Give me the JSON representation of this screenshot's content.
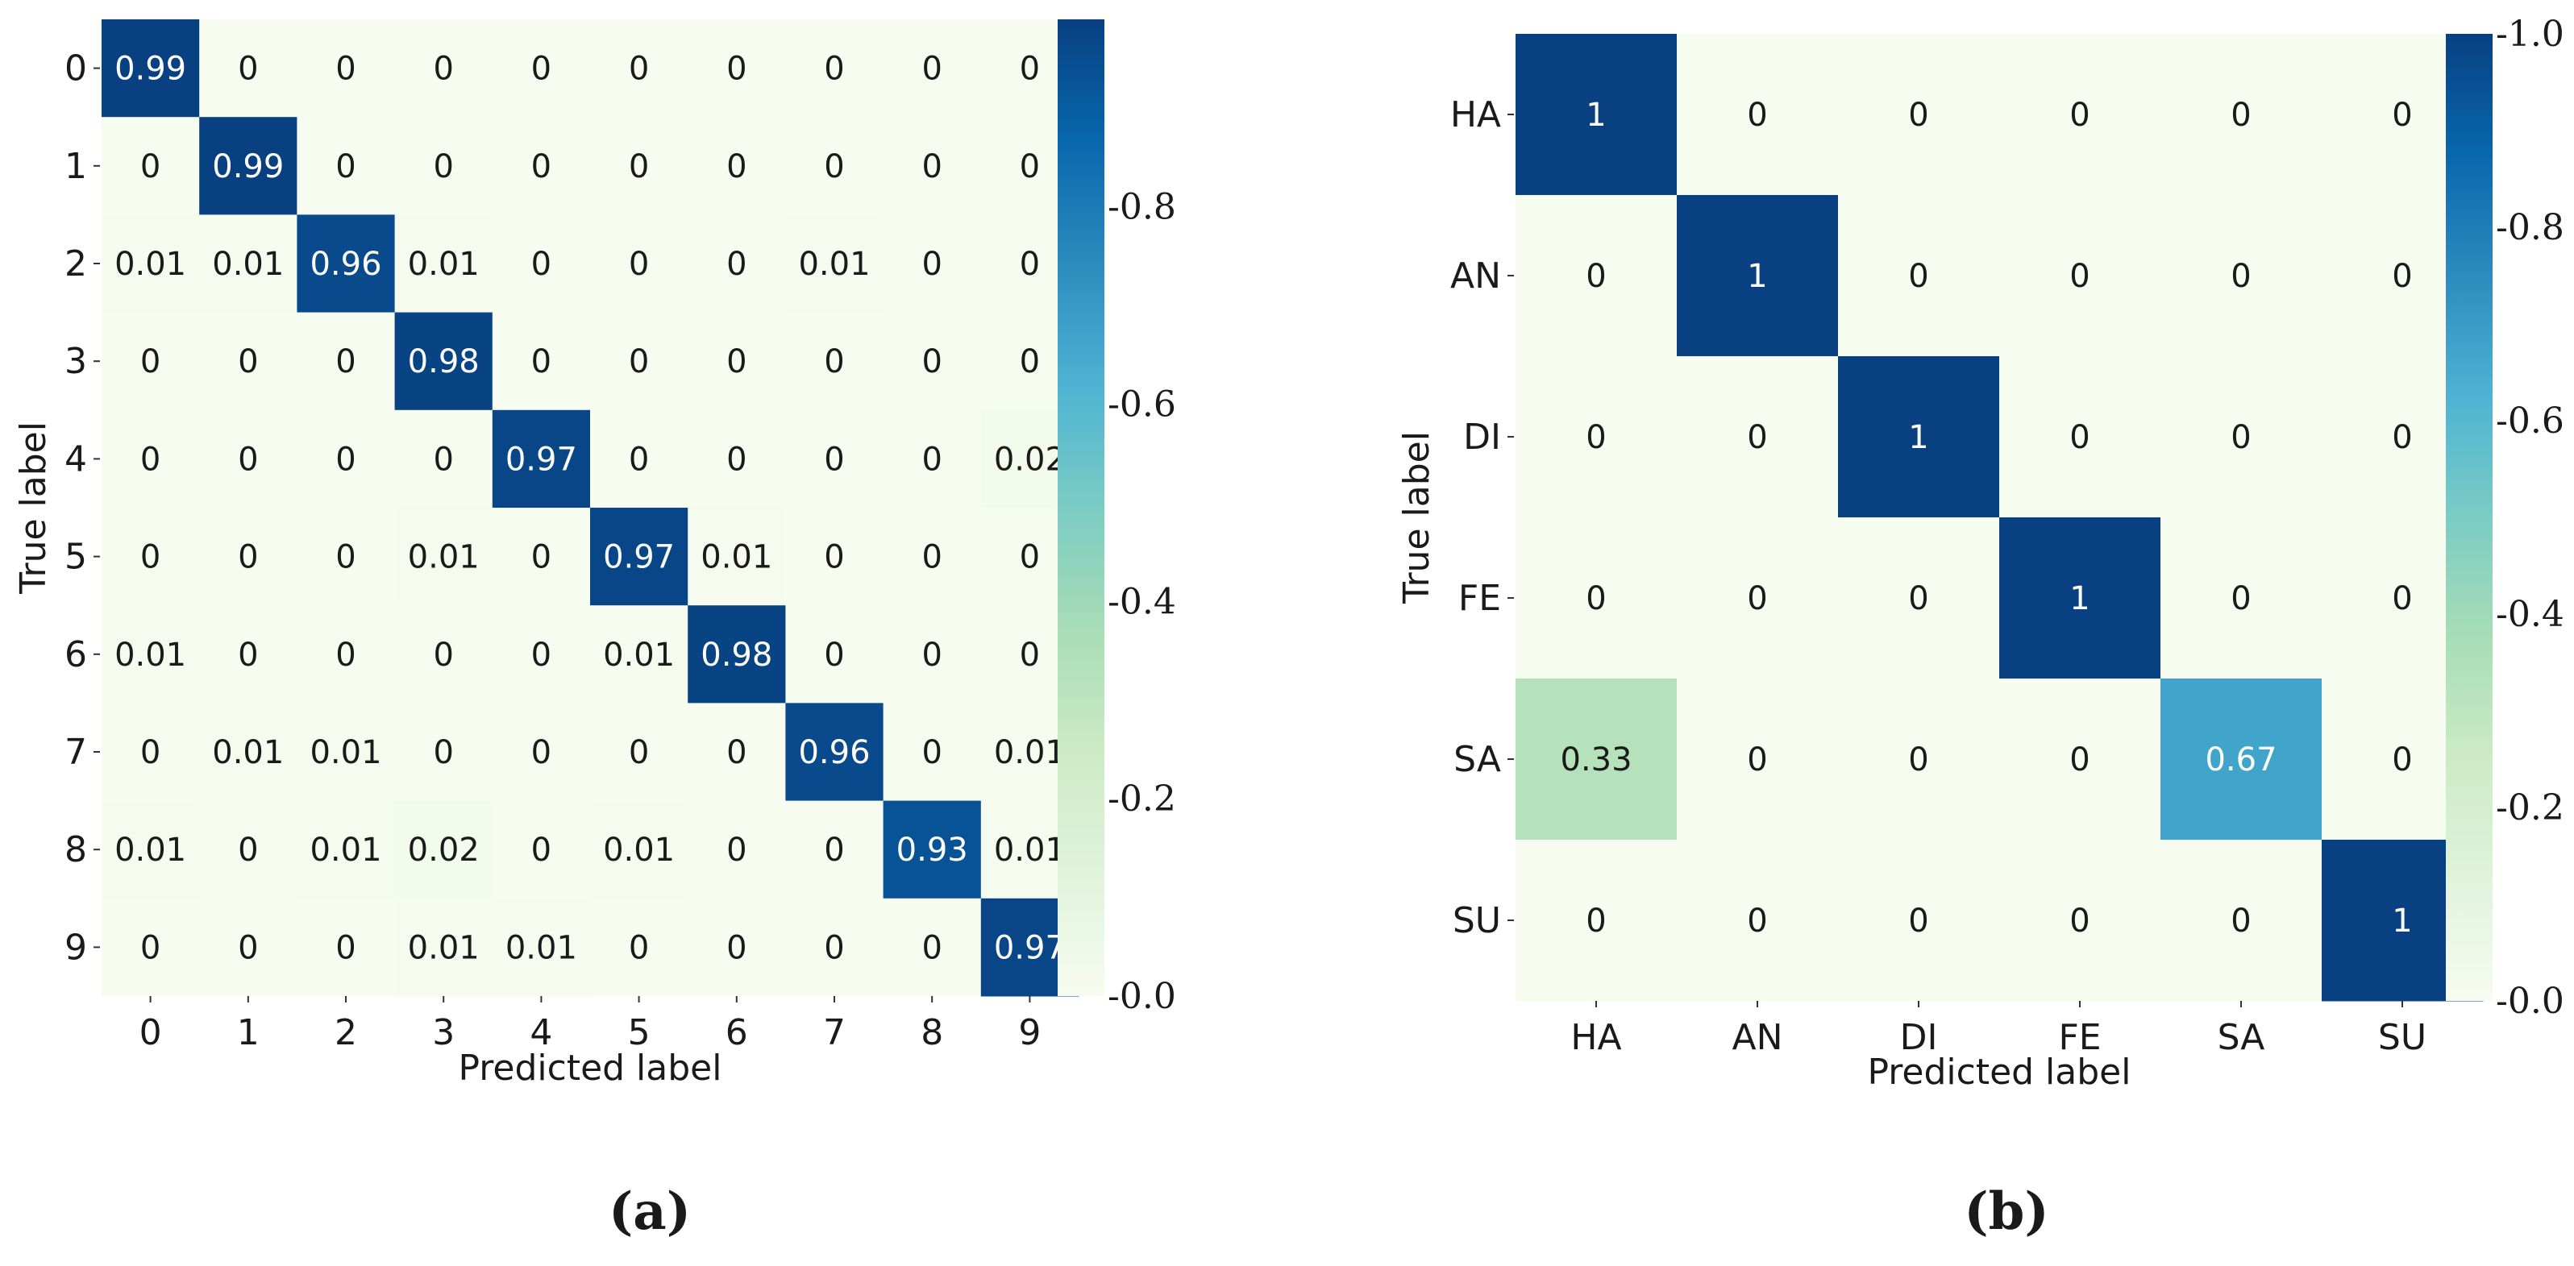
{
  "chart_data": [
    {
      "type": "heatmap",
      "caption": "(a)",
      "xlabel": "Predicted label",
      "ylabel": "True label",
      "x_categories": [
        "0",
        "1",
        "2",
        "3",
        "4",
        "5",
        "6",
        "7",
        "8",
        "9"
      ],
      "y_categories": [
        "0",
        "1",
        "2",
        "3",
        "4",
        "5",
        "6",
        "7",
        "8",
        "9"
      ],
      "values": [
        [
          0.99,
          0,
          0,
          0,
          0,
          0,
          0,
          0,
          0,
          0
        ],
        [
          0,
          0.99,
          0,
          0,
          0,
          0,
          0,
          0,
          0,
          0
        ],
        [
          0.01,
          0.01,
          0.96,
          0.01,
          0,
          0,
          0,
          0.01,
          0,
          0
        ],
        [
          0,
          0,
          0,
          0.98,
          0,
          0,
          0,
          0,
          0,
          0
        ],
        [
          0,
          0,
          0,
          0,
          0.97,
          0,
          0,
          0,
          0,
          0.02
        ],
        [
          0,
          0,
          0,
          0.01,
          0,
          0.97,
          0.01,
          0,
          0,
          0
        ],
        [
          0.01,
          0,
          0,
          0,
          0,
          0.01,
          0.98,
          0,
          0,
          0
        ],
        [
          0,
          0.01,
          0.01,
          0,
          0,
          0,
          0,
          0.96,
          0,
          0.01
        ],
        [
          0.01,
          0,
          0.01,
          0.02,
          0,
          0.01,
          0,
          0,
          0.93,
          0.01
        ],
        [
          0,
          0,
          0,
          0.01,
          0.01,
          0,
          0,
          0,
          0,
          0.97
        ]
      ],
      "colorbar": {
        "range": [
          0,
          0.99
        ],
        "ticks": [
          0.0,
          0.2,
          0.4,
          0.6,
          0.8
        ],
        "tick_labels": [
          "-0.0",
          "-0.2",
          "-0.4",
          "-0.6",
          "-0.8"
        ]
      },
      "colormap": "GnBu",
      "grid": false
    },
    {
      "type": "heatmap",
      "caption": "(b)",
      "xlabel": "Predicted label",
      "ylabel": "True label",
      "x_categories": [
        "HA",
        "AN",
        "DI",
        "FE",
        "SA",
        "SU"
      ],
      "y_categories": [
        "HA",
        "AN",
        "DI",
        "FE",
        "SA",
        "SU"
      ],
      "values": [
        [
          1,
          0,
          0,
          0,
          0,
          0
        ],
        [
          0,
          1,
          0,
          0,
          0,
          0
        ],
        [
          0,
          0,
          1,
          0,
          0,
          0
        ],
        [
          0,
          0,
          0,
          1,
          0,
          0
        ],
        [
          0.33,
          0,
          0,
          0,
          0.67,
          0
        ],
        [
          0,
          0,
          0,
          0,
          0,
          1
        ]
      ],
      "colorbar": {
        "range": [
          0,
          1.0
        ],
        "ticks": [
          0.0,
          0.2,
          0.4,
          0.6,
          0.8,
          1.0
        ],
        "tick_labels": [
          "-0.0",
          "-0.2",
          "-0.4",
          "-0.6",
          "-0.8",
          "-1.0"
        ]
      },
      "colormap": "GnBu",
      "grid": false
    }
  ]
}
